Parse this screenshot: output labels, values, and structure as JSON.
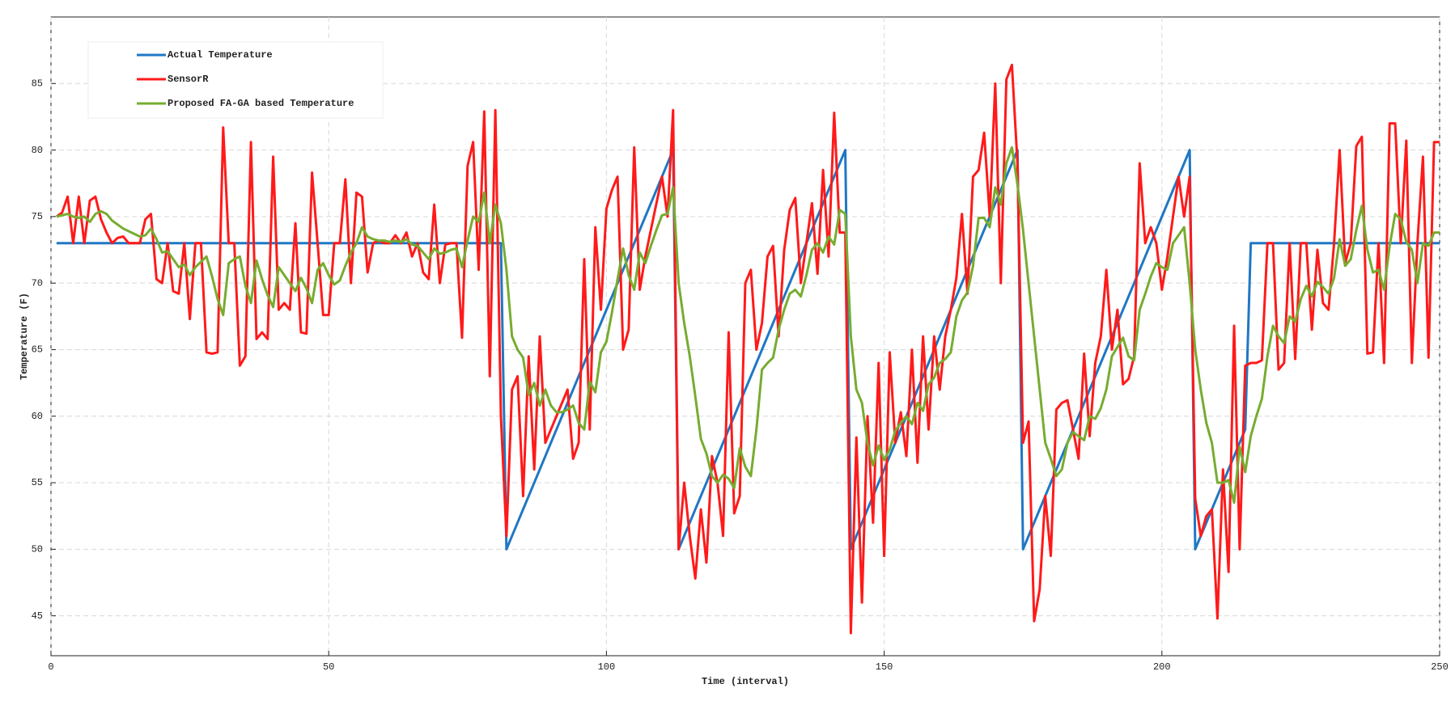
{
  "chart_data": {
    "type": "line",
    "xlabel": "Time (interval)",
    "ylabel": "Temperature (F)",
    "xlim": [
      0,
      250
    ],
    "ylim": [
      42,
      90
    ],
    "xticks": [
      0,
      50,
      100,
      150,
      200,
      250
    ],
    "yticks": [
      45,
      50,
      55,
      60,
      65,
      70,
      75,
      80,
      85
    ],
    "grid": true,
    "legend": "upper left",
    "x": [
      1,
      2,
      3,
      4,
      5,
      6,
      7,
      8,
      9,
      10,
      11,
      12,
      13,
      14,
      15,
      16,
      17,
      18,
      19,
      20,
      21,
      22,
      23,
      24,
      25,
      26,
      27,
      28,
      29,
      30,
      31,
      32,
      33,
      34,
      35,
      36,
      37,
      38,
      39,
      40,
      41,
      42,
      43,
      44,
      45,
      46,
      47,
      48,
      49,
      50,
      51,
      52,
      53,
      54,
      55,
      56,
      57,
      58,
      59,
      60,
      61,
      62,
      63,
      64,
      65,
      66,
      67,
      68,
      69,
      70,
      71,
      72,
      73,
      74,
      75,
      76,
      77,
      78,
      79,
      80,
      81,
      82,
      83,
      84,
      85,
      86,
      87,
      88,
      89,
      90,
      91,
      92,
      93,
      94,
      95,
      96,
      97,
      98,
      99,
      100,
      101,
      102,
      103,
      104,
      105,
      106,
      107,
      108,
      109,
      110,
      111,
      112,
      113,
      114,
      115,
      116,
      117,
      118,
      119,
      120,
      121,
      122,
      123,
      124,
      125,
      126,
      127,
      128,
      129,
      130,
      131,
      132,
      133,
      134,
      135,
      136,
      137,
      138,
      139,
      140,
      141,
      142,
      143,
      144,
      145,
      146,
      147,
      148,
      149,
      150,
      151,
      152,
      153,
      154,
      155,
      156,
      157,
      158,
      159,
      160,
      161,
      162,
      163,
      164,
      165,
      166,
      167,
      168,
      169,
      170,
      171,
      172,
      173,
      174,
      175,
      176,
      177,
      178,
      179,
      180,
      181,
      182,
      183,
      184,
      185,
      186,
      187,
      188,
      189,
      190,
      191,
      192,
      193,
      194,
      195,
      196,
      197,
      198,
      199,
      200,
      201,
      202,
      203,
      204,
      205,
      206,
      207,
      208,
      209,
      210,
      211,
      212,
      213,
      214,
      215,
      216,
      217,
      218,
      219,
      220,
      221,
      222,
      223,
      224,
      225,
      226,
      227,
      228,
      229,
      230,
      231,
      232,
      233,
      234,
      235,
      236,
      237,
      238,
      239,
      240,
      241,
      242,
      243,
      244,
      245,
      246,
      247,
      248,
      249,
      250
    ],
    "series": [
      {
        "name": "Actual Temperature",
        "color": "#1f77c4",
        "x": [
          1,
          81,
          82,
          112,
          113,
          143,
          144,
          174,
          175,
          205,
          206,
          215,
          216,
          250
        ],
        "values": [
          73,
          73,
          50,
          80,
          50,
          80,
          50,
          80,
          50,
          80,
          50,
          59,
          73,
          73
        ]
      },
      {
        "name": "SensorR",
        "color": "#ff1a1a",
        "values": [
          75,
          75.3,
          76.5,
          73,
          76.5,
          73,
          76.2,
          76.5,
          74.8,
          73.8,
          73,
          73.4,
          73.5,
          73,
          73,
          73,
          74.8,
          75.2,
          70.3,
          70,
          73,
          69.4,
          69.2,
          73,
          67.3,
          73,
          73,
          64.8,
          64.7,
          64.8,
          81.7,
          73,
          73,
          63.8,
          64.5,
          80.6,
          65.8,
          66.3,
          65.8,
          79.5,
          68,
          68.5,
          68,
          74.5,
          66.3,
          66.2,
          78.3,
          73,
          67.6,
          67.6,
          73,
          73,
          77.8,
          70,
          76.8,
          76.5,
          70.8,
          73,
          73.2,
          73,
          73,
          73.6,
          73,
          73.8,
          72,
          73,
          70.8,
          70.3,
          75.9,
          70,
          72.9,
          73,
          73,
          65.9,
          78.8,
          80.6,
          71,
          82.9,
          63,
          83,
          60,
          51,
          62,
          63,
          54,
          64.5,
          56,
          66,
          58,
          59,
          60,
          61,
          62,
          56.8,
          58,
          71.8,
          59,
          74.2,
          68,
          75.6,
          77,
          78,
          65,
          66.5,
          80.2,
          69.5,
          72,
          74,
          76,
          78,
          75,
          83,
          50,
          55,
          51,
          47.8,
          53,
          49,
          57,
          55,
          51,
          66.3,
          52.7,
          54,
          70,
          71,
          65,
          67,
          72,
          72.8,
          66,
          72.5,
          75.5,
          76.4,
          70,
          73,
          76,
          70.7,
          78.5,
          72,
          82.8,
          73.8,
          73.8,
          43.7,
          58.4,
          46,
          60,
          52,
          64,
          49.5,
          64.8,
          58,
          60.3,
          57,
          65,
          56.5,
          66,
          59,
          66,
          62,
          66,
          68,
          70.4,
          75.2,
          69.2,
          78,
          78.5,
          81.3,
          75,
          85,
          70,
          85.3,
          86.4,
          79,
          58,
          59.6,
          44.6,
          47,
          54,
          49.5,
          60.5,
          61,
          61.2,
          59,
          56.8,
          64.7,
          58.5,
          64,
          66,
          71,
          65,
          68,
          62.4,
          62.8,
          64.5,
          79,
          73,
          74.2,
          73,
          69.5,
          72,
          75,
          78,
          75,
          78,
          53.8,
          51,
          52.5,
          53,
          44.8,
          56,
          48.3,
          66.8,
          50,
          63.8,
          64,
          64,
          64.2,
          73,
          73,
          63.5,
          64,
          73,
          64.3,
          73,
          73,
          66.5,
          72.5,
          68.5,
          68,
          73,
          80,
          71.5,
          73,
          80.3,
          81,
          64.7,
          64.8,
          73,
          64,
          82,
          82,
          73,
          80.7,
          64,
          73,
          79.5,
          64.4,
          80.6,
          80.6
        ]
      },
      {
        "name": "Proposed FA-GA based Temperature",
        "color": "#77ac30",
        "values": [
          75,
          75.1,
          75.2,
          75,
          74.9,
          75,
          74.6,
          75.2,
          75.4,
          75.2,
          74.7,
          74.4,
          74.1,
          73.9,
          73.7,
          73.5,
          73.6,
          74.1,
          73.3,
          72.3,
          72.4,
          71.8,
          71.2,
          71.4,
          70.6,
          71.2,
          71.6,
          72,
          70.5,
          68.8,
          67.6,
          71.5,
          71.8,
          72,
          69.8,
          68.5,
          71.7,
          70.3,
          69.1,
          68.2,
          71.2,
          70.6,
          70,
          69.4,
          70.4,
          69.6,
          68.5,
          71,
          71.5,
          70.6,
          69.9,
          70.2,
          71.3,
          72.3,
          73,
          74.2,
          73.5,
          73.3,
          73.2,
          73.2,
          73.1,
          73.2,
          73.1,
          73.3,
          72.9,
          72.8,
          72.3,
          71.8,
          72.6,
          72.2,
          72.3,
          72.5,
          72.6,
          71.2,
          73.2,
          75,
          74.6,
          76.8,
          73,
          75.9,
          74.5,
          71,
          66,
          65,
          64.4,
          61.6,
          62.5,
          60.8,
          62,
          60.8,
          60.3,
          60.3,
          60.5,
          60.8,
          59.5,
          59,
          62.6,
          61.8,
          64.8,
          65.6,
          67.8,
          70.3,
          72.6,
          70.6,
          69.5,
          72.3,
          71.5,
          72.8,
          74,
          75.1,
          75.2,
          77.2,
          70,
          67,
          64.5,
          61.5,
          58.3,
          57.2,
          55.5,
          55,
          55.6,
          55.3,
          54.6,
          57.6,
          56.2,
          55.5,
          59,
          63.5,
          64,
          64.4,
          66.5,
          68,
          69.2,
          69.5,
          69,
          70.6,
          72.5,
          73,
          72.3,
          73.5,
          72.9,
          75.5,
          75.2,
          66,
          62,
          61,
          58,
          56.3,
          57.8,
          56.7,
          57.5,
          58.9,
          59.5,
          60,
          59.4,
          61,
          60.4,
          62.4,
          62.9,
          64,
          64.3,
          64.8,
          67.5,
          68.7,
          69.3,
          71.3,
          74.9,
          74.9,
          74.2,
          77.2,
          75.9,
          79,
          80.2,
          77.4,
          74,
          70,
          66,
          62,
          58,
          56.8,
          55.5,
          56,
          58,
          58.8,
          58.5,
          58.2,
          60,
          59.8,
          60.6,
          62,
          64.5,
          65.2,
          65.9,
          64.5,
          64.2,
          68,
          69.2,
          70.5,
          71.5,
          71.2,
          71,
          73,
          73.6,
          74.2,
          70,
          65,
          62,
          59.5,
          58,
          55,
          55,
          55.2,
          53.5,
          57.7,
          55.8,
          58.5,
          60,
          61.3,
          64.5,
          66.8,
          66,
          65.5,
          67.5,
          67.1,
          68.8,
          69.8,
          69,
          70.1,
          69.7,
          69.2,
          70.4,
          73.3,
          71.3,
          71.8,
          74,
          75.8,
          72.5,
          70.8,
          71,
          69.5,
          72.8,
          75.2,
          74.8,
          73.1,
          72.5,
          70,
          73,
          72.8,
          73.8,
          73.8
        ]
      }
    ]
  }
}
